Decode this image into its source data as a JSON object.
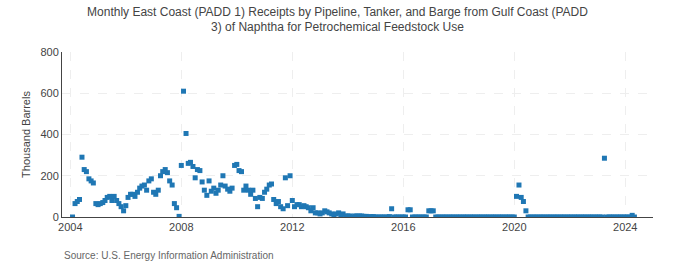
{
  "chart_data": {
    "type": "scatter",
    "title": "Monthly East Coast (PADD 1) Receipts by Pipeline, Tanker, and Barge from Gulf Coast (PADD\n3) of Naphtha for Petrochemical Feedstock Use",
    "y_label": "Thousand Barrels",
    "annotations": [
      "Source: U.S. Energy Information Administration"
    ],
    "marker": "square",
    "grid": true,
    "xlim": [
      2003.7,
      2025.0
    ],
    "ylim": [
      0,
      800
    ],
    "xticks": [
      2004,
      2008,
      2012,
      2016,
      2020,
      2024
    ],
    "yticks": [
      0,
      200,
      400,
      600,
      800
    ],
    "x": [
      2004.08,
      2004.17,
      2004.25,
      2004.33,
      2004.42,
      2004.5,
      2004.58,
      2004.67,
      2004.75,
      2004.83,
      2004.92,
      2005.0,
      2005.08,
      2005.17,
      2005.25,
      2005.33,
      2005.42,
      2005.5,
      2005.58,
      2005.67,
      2005.75,
      2005.83,
      2005.92,
      2006.0,
      2006.08,
      2006.17,
      2006.25,
      2006.33,
      2006.42,
      2006.5,
      2006.58,
      2006.67,
      2006.75,
      2006.83,
      2006.92,
      2007.0,
      2007.08,
      2007.17,
      2007.25,
      2007.33,
      2007.42,
      2007.5,
      2007.58,
      2007.67,
      2007.75,
      2007.83,
      2007.92,
      2008.0,
      2008.08,
      2008.17,
      2008.25,
      2008.33,
      2008.42,
      2008.5,
      2008.58,
      2008.67,
      2008.75,
      2008.83,
      2008.92,
      2009.0,
      2009.08,
      2009.17,
      2009.25,
      2009.33,
      2009.42,
      2009.5,
      2009.58,
      2009.67,
      2009.75,
      2009.83,
      2009.92,
      2010.0,
      2010.08,
      2010.17,
      2010.25,
      2010.33,
      2010.42,
      2010.5,
      2010.58,
      2010.67,
      2010.75,
      2010.83,
      2010.92,
      2011.0,
      2011.08,
      2011.17,
      2011.25,
      2011.33,
      2011.42,
      2011.5,
      2011.58,
      2011.67,
      2011.75,
      2011.83,
      2011.92,
      2012.0,
      2012.08,
      2012.17,
      2012.25,
      2012.33,
      2012.42,
      2012.5,
      2012.58,
      2012.67,
      2012.75,
      2012.83,
      2012.92,
      2013.0,
      2013.08,
      2013.17,
      2013.25,
      2013.33,
      2013.42,
      2013.5,
      2013.58,
      2013.67,
      2013.75,
      2013.83,
      2013.92,
      2014.0,
      2014.08,
      2014.17,
      2014.25,
      2014.33,
      2014.42,
      2014.5,
      2014.58,
      2014.67,
      2014.75,
      2014.83,
      2014.92,
      2015.0,
      2015.08,
      2015.17,
      2015.25,
      2015.33,
      2015.42,
      2015.5,
      2015.58,
      2015.67,
      2015.75,
      2015.83,
      2015.92,
      2016.0,
      2016.08,
      2016.17,
      2016.25,
      2016.33,
      2016.42,
      2016.5,
      2016.58,
      2016.67,
      2016.75,
      2016.83,
      2016.92,
      2017.0,
      2017.08,
      2017.17,
      2017.25,
      2017.33,
      2017.42,
      2017.5,
      2017.58,
      2017.67,
      2017.75,
      2017.83,
      2017.92,
      2018.0,
      2018.08,
      2018.17,
      2018.25,
      2018.33,
      2018.42,
      2018.5,
      2018.58,
      2018.67,
      2018.75,
      2018.83,
      2018.92,
      2019.0,
      2019.08,
      2019.17,
      2019.25,
      2019.33,
      2019.42,
      2019.5,
      2019.58,
      2019.67,
      2019.75,
      2019.83,
      2019.92,
      2020.0,
      2020.08,
      2020.17,
      2020.25,
      2020.33,
      2020.42,
      2020.5,
      2020.58,
      2020.67,
      2020.75,
      2020.83,
      2020.92,
      2021.0,
      2021.08,
      2021.17,
      2021.25,
      2021.33,
      2021.42,
      2021.5,
      2021.58,
      2021.67,
      2021.75,
      2021.83,
      2021.92,
      2022.0,
      2022.08,
      2022.17,
      2022.25,
      2022.33,
      2022.42,
      2022.5,
      2022.58,
      2022.67,
      2022.75,
      2022.83,
      2022.92,
      2023.0,
      2023.08,
      2023.17,
      2023.25,
      2023.33,
      2023.42,
      2023.5,
      2023.58,
      2023.67,
      2023.75,
      2023.83,
      2023.92,
      2024.0,
      2024.08,
      2024.17,
      2024.25,
      2024.33
    ],
    "values": [
      0,
      65,
      75,
      85,
      290,
      230,
      220,
      185,
      175,
      165,
      65,
      60,
      65,
      70,
      80,
      95,
      100,
      80,
      100,
      80,
      65,
      50,
      30,
      55,
      95,
      110,
      110,
      100,
      120,
      140,
      150,
      155,
      130,
      175,
      185,
      120,
      110,
      130,
      200,
      220,
      230,
      215,
      175,
      155,
      65,
      45,
      3,
      250,
      610,
      405,
      260,
      265,
      245,
      190,
      230,
      225,
      170,
      130,
      105,
      175,
      125,
      140,
      115,
      130,
      155,
      200,
      150,
      135,
      125,
      140,
      250,
      255,
      225,
      220,
      130,
      150,
      130,
      110,
      130,
      90,
      50,
      95,
      90,
      120,
      135,
      155,
      160,
      85,
      65,
      75,
      50,
      40,
      190,
      55,
      200,
      80,
      50,
      60,
      60,
      50,
      55,
      50,
      45,
      30,
      45,
      20,
      20,
      15,
      20,
      30,
      25,
      20,
      15,
      10,
      15,
      20,
      10,
      15,
      5,
      5,
      5,
      0,
      5,
      5,
      5,
      5,
      3,
      3,
      0,
      2,
      2,
      0,
      0,
      0,
      0,
      0,
      0,
      2,
      40,
      0,
      0,
      0,
      0,
      0,
      0,
      35,
      35,
      0,
      0,
      0,
      0,
      0,
      0,
      0,
      30,
      30,
      30,
      0,
      0,
      0,
      0,
      0,
      0,
      0,
      0,
      0,
      0,
      0,
      0,
      0,
      0,
      0,
      0,
      0,
      0,
      0,
      0,
      0,
      0,
      0,
      0,
      0,
      0,
      0,
      0,
      0,
      0,
      0,
      0,
      0,
      0,
      0,
      100,
      155,
      95,
      75,
      30,
      0,
      0,
      0,
      0,
      0,
      0,
      0,
      0,
      0,
      0,
      0,
      0,
      0,
      0,
      0,
      0,
      0,
      0,
      0,
      0,
      0,
      0,
      0,
      0,
      0,
      0,
      0,
      0,
      0,
      0,
      0,
      0,
      0,
      285,
      0,
      0,
      0,
      0,
      0,
      0,
      0,
      0,
      0,
      0,
      0,
      8,
      0
    ]
  }
}
